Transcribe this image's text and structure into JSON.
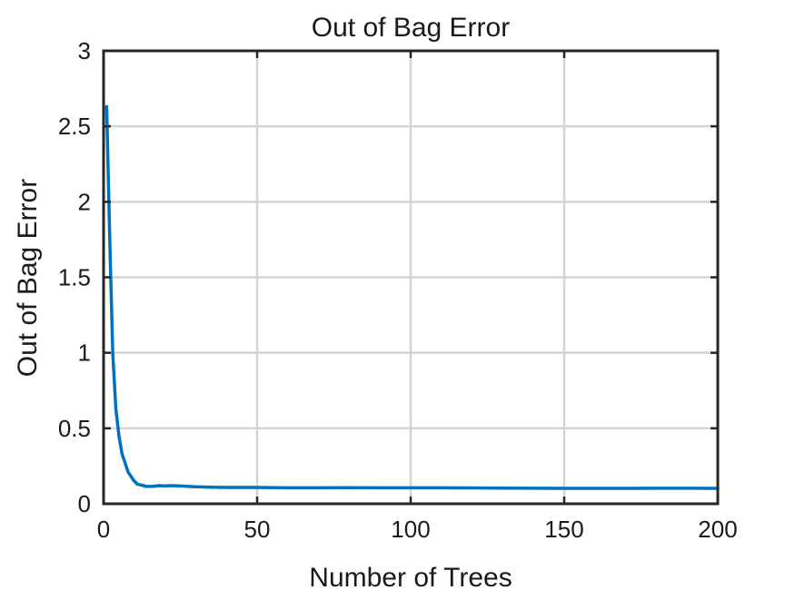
{
  "chart_data": {
    "type": "line",
    "title": "Out of Bag Error",
    "xlabel": "Number of Trees",
    "ylabel": "Out of Bag Error",
    "xlim": [
      0,
      200
    ],
    "ylim": [
      0,
      3
    ],
    "xticks": [
      0,
      50,
      100,
      150,
      200
    ],
    "yticks": [
      0,
      0.5,
      1,
      1.5,
      2,
      2.5,
      3
    ],
    "xtick_labels": [
      "0",
      "50",
      "100",
      "150",
      "200"
    ],
    "ytick_labels": [
      "0",
      "0.5",
      "1",
      "1.5",
      "2",
      "2.5",
      "3"
    ],
    "grid": true,
    "series": [
      {
        "color": "#0072BD",
        "x": [
          1,
          2,
          3,
          4,
          5,
          6,
          7,
          8,
          9,
          10,
          11,
          12,
          13,
          14,
          15,
          16,
          18,
          20,
          22,
          25,
          30,
          35,
          40,
          50,
          60,
          70,
          80,
          90,
          100,
          110,
          120,
          130,
          140,
          150,
          160,
          170,
          180,
          190,
          200
        ],
        "y": [
          2.63,
          1.75,
          1.0,
          0.63,
          0.45,
          0.33,
          0.27,
          0.21,
          0.18,
          0.15,
          0.13,
          0.125,
          0.12,
          0.115,
          0.115,
          0.115,
          0.12,
          0.118,
          0.12,
          0.118,
          0.113,
          0.11,
          0.108,
          0.108,
          0.106,
          0.106,
          0.107,
          0.106,
          0.106,
          0.106,
          0.105,
          0.104,
          0.103,
          0.102,
          0.102,
          0.102,
          0.103,
          0.103,
          0.102
        ]
      }
    ]
  }
}
